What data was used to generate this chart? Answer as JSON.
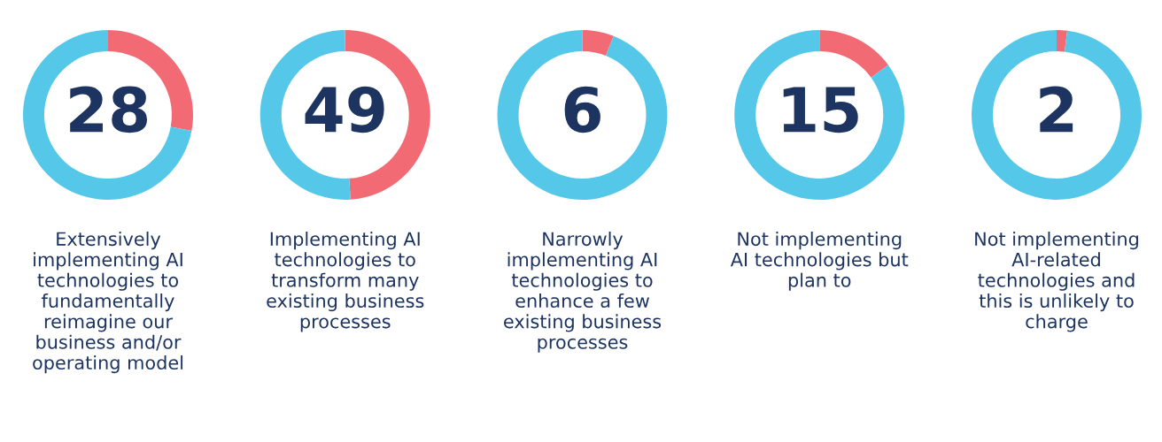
{
  "chart_data": [
    {
      "type": "donut",
      "categories": [
        null,
        null
      ],
      "values": [
        28,
        72
      ],
      "colors": [
        "#f26b74",
        "#55c8ea"
      ],
      "value_labels": [
        "28",
        null
      ],
      "xlabel": "Extensively\nimplementing AI\ntechnologies to\nfundamentally\nreimagine our\nbusiness and/or\noperating model"
    },
    {
      "type": "donut",
      "categories": [
        null,
        null
      ],
      "values": [
        49,
        51
      ],
      "colors": [
        "#f26b74",
        "#55c8ea"
      ],
      "value_labels": [
        "49",
        null
      ],
      "xlabel": "Implementing AI\ntechnologies to\ntransform many\nexisting business\nprocesses"
    },
    {
      "type": "donut",
      "categories": [
        null,
        null
      ],
      "values": [
        6,
        94
      ],
      "colors": [
        "#f26b74",
        "#55c8ea"
      ],
      "value_labels": [
        "6",
        null
      ],
      "xlabel": "Narrowly\nimplementing AI\ntechnologies to\nenhance a few\nexisting business\nprocesses"
    },
    {
      "type": "donut",
      "categories": [
        null,
        null
      ],
      "values": [
        15,
        85
      ],
      "colors": [
        "#f26b74",
        "#55c8ea"
      ],
      "value_labels": [
        "15",
        null
      ],
      "xlabel": "Not implementing\nAI technologies but\nplan to"
    },
    {
      "type": "donut",
      "categories": [
        null,
        null
      ],
      "values": [
        2,
        98
      ],
      "colors": [
        "#f26b74",
        "#55c8ea"
      ],
      "value_labels": [
        "2",
        null
      ],
      "xlabel": "Not implementing\nAI-related\ntechnologies and\nthis is unlikely to\ncharge"
    }
  ]
}
